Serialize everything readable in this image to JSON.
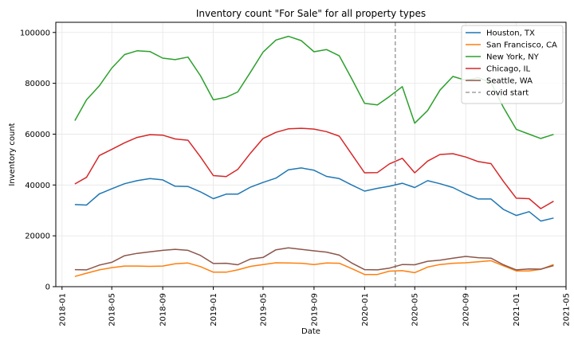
{
  "chart_data": {
    "type": "line",
    "title": "Inventory count \"For Sale\" for all property types",
    "xlabel": "Date",
    "ylabel": "Inventory count",
    "xlim": [
      "2017-12-17",
      "2021-05-01"
    ],
    "ylim": [
      0,
      104000
    ],
    "x_ticks": [
      "2018-01",
      "2018-05",
      "2018-09",
      "2019-01",
      "2019-05",
      "2019-09",
      "2020-01",
      "2020-05",
      "2020-09",
      "2021-01",
      "2021-05"
    ],
    "y_ticks": [
      0,
      20000,
      40000,
      60000,
      80000,
      100000
    ],
    "y_tick_labels": [
      "0",
      "20000",
      "40000",
      "60000",
      "80000",
      "100000"
    ],
    "grid": true,
    "legend_position": "top-right",
    "x": [
      "2018-02-01",
      "2018-03-01",
      "2018-04-01",
      "2018-05-01",
      "2018-06-01",
      "2018-07-01",
      "2018-08-01",
      "2018-09-01",
      "2018-10-01",
      "2018-11-01",
      "2018-12-01",
      "2019-01-01",
      "2019-02-01",
      "2019-03-01",
      "2019-04-01",
      "2019-05-01",
      "2019-06-01",
      "2019-07-01",
      "2019-08-01",
      "2019-09-01",
      "2019-10-01",
      "2019-11-01",
      "2019-12-01",
      "2020-01-01",
      "2020-02-01",
      "2020-03-01",
      "2020-04-01",
      "2020-05-01",
      "2020-06-01",
      "2020-07-01",
      "2020-08-01",
      "2020-09-01",
      "2020-10-01",
      "2020-11-01",
      "2020-12-01",
      "2021-01-01",
      "2021-02-01",
      "2021-03-01",
      "2021-04-01"
    ],
    "series": [
      {
        "name": "Houston, TX",
        "color": "#1f77b4",
        "values": [
          32300,
          32100,
          36500,
          38500,
          40500,
          41700,
          42500,
          42000,
          39500,
          39400,
          37300,
          34600,
          36400,
          36400,
          39200,
          41000,
          42700,
          46000,
          46700,
          45800,
          43400,
          42500,
          40000,
          37600,
          38700,
          39500,
          40700,
          39000,
          41700,
          40500,
          39000,
          36500,
          34500,
          34500,
          30400,
          28000,
          29500,
          25800,
          27000
        ]
      },
      {
        "name": "San Francisco, CA",
        "color": "#ff7f0e",
        "values": [
          4000,
          5300,
          6600,
          7500,
          8100,
          8100,
          8000,
          8100,
          9000,
          9300,
          7900,
          5700,
          5700,
          6600,
          8000,
          8700,
          9400,
          9300,
          9200,
          8700,
          9300,
          9200,
          7100,
          4800,
          4800,
          6100,
          6300,
          5500,
          7700,
          8700,
          9200,
          9400,
          9800,
          10200,
          8200,
          6200,
          6200,
          6800,
          8700
        ]
      },
      {
        "name": "New York, NY",
        "color": "#2ca02c",
        "values": [
          65300,
          73500,
          79000,
          86000,
          91300,
          92800,
          92500,
          89900,
          89300,
          90300,
          83000,
          73500,
          74500,
          76600,
          84500,
          92300,
          97000,
          98500,
          96800,
          92400,
          93300,
          90800,
          81800,
          72100,
          71500,
          74800,
          78700,
          64300,
          69300,
          77300,
          82700,
          81200,
          82200,
          80300,
          70500,
          61900,
          60000,
          58300,
          59900
        ]
      },
      {
        "name": "Chicago, IL",
        "color": "#d62728",
        "values": [
          40400,
          43000,
          51600,
          54000,
          56600,
          58700,
          59800,
          59600,
          58100,
          57600,
          51100,
          43700,
          43300,
          46100,
          52600,
          58300,
          60700,
          62100,
          62300,
          62000,
          61000,
          59200,
          52100,
          44800,
          44900,
          48300,
          50500,
          44800,
          49400,
          52000,
          52300,
          51000,
          49200,
          48400,
          41400,
          34800,
          34600,
          30700,
          33600
        ]
      },
      {
        "name": "Seattle, WA",
        "color": "#8c564b",
        "values": [
          6700,
          6600,
          8500,
          9600,
          12200,
          13100,
          13700,
          14300,
          14700,
          14300,
          12300,
          9100,
          9200,
          8600,
          10900,
          11500,
          14500,
          15300,
          14700,
          14100,
          13600,
          12400,
          9300,
          6700,
          6600,
          7300,
          8700,
          8600,
          10000,
          10400,
          11200,
          11900,
          11400,
          11200,
          8600,
          6600,
          7000,
          6900,
          8300
        ]
      }
    ],
    "annotations": [
      {
        "type": "vline",
        "label": "covid start",
        "x": "2020-03-15",
        "color": "#a0a0a0",
        "style": "dashed"
      }
    ]
  }
}
